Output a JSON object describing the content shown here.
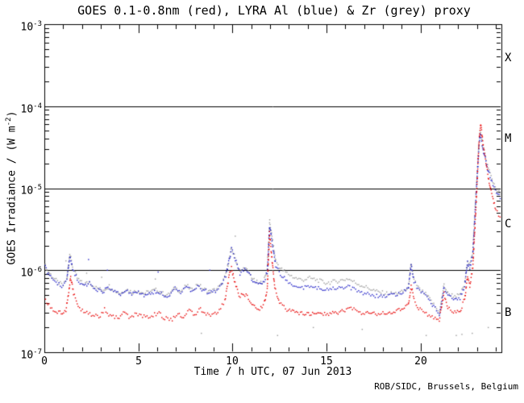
{
  "credit": "ROB/SIDC, Brussels, Belgium",
  "chart_data": {
    "type": "scatter",
    "title": "GOES 0.1-0.8nm (red), LYRA Al (blue) & Zr (grey) proxy",
    "xlabel": "Time / h UTC, 07 Jun 2013",
    "ylabel": "GOES Irradiance / (W m-2)",
    "ylabel_parts": {
      "pre": "GOES Irradiance / (W m",
      "exp": "-2",
      "post": ")"
    },
    "xlim": [
      0,
      24.3
    ],
    "ylim": [
      1e-07,
      0.001
    ],
    "yscale": "log",
    "grid": false,
    "x_major_ticks": [
      0,
      5,
      10,
      15,
      20
    ],
    "x_tick_labels": [
      "0",
      "5",
      "10",
      "15",
      "20"
    ],
    "x_minor_step": 1,
    "y_ticks": [
      {
        "base": "10",
        "exp": "-3",
        "value": 0.001
      },
      {
        "base": "10",
        "exp": "-4",
        "value": 0.0001
      },
      {
        "base": "10",
        "exp": "-5",
        "value": 1e-05
      },
      {
        "base": "10",
        "exp": "-6",
        "value": 1e-06
      },
      {
        "base": "10",
        "exp": "-7",
        "value": 1e-07
      }
    ],
    "hlines": [
      0.0001,
      1e-05,
      1e-06
    ],
    "flare_classes": [
      {
        "label": "X",
        "range": [
          0.0001,
          0.001
        ]
      },
      {
        "label": "M",
        "range": [
          1e-05,
          0.0001
        ]
      },
      {
        "label": "C",
        "range": [
          1e-06,
          1e-05
        ]
      },
      {
        "label": "B",
        "range": [
          1e-07,
          1e-06
        ]
      }
    ],
    "series": [
      {
        "name": "LYRA Zr proxy",
        "color": "#9b9b9b",
        "points": [
          [
            0,
            1.2e-06
          ],
          [
            0.15,
            1e-06
          ],
          [
            0.4,
            8.5e-07
          ],
          [
            0.7,
            7.2e-07
          ],
          [
            1.0,
            6.5e-07
          ],
          [
            1.2,
            7.8e-07
          ],
          [
            1.35,
            1.62e-06
          ],
          [
            1.5,
            1.1e-06
          ],
          [
            1.75,
            8e-07
          ],
          [
            2.05,
            6.8e-07
          ],
          [
            2.4,
            7.1e-07
          ],
          [
            2.75,
            6.1e-07
          ],
          [
            3.1,
            5.7e-07
          ],
          [
            3.45,
            6.4e-07
          ],
          [
            3.75,
            5.6e-07
          ],
          [
            4.05,
            5.2e-07
          ],
          [
            4.35,
            5.9e-07
          ],
          [
            4.65,
            5.4e-07
          ],
          [
            5.0,
            5.6e-07
          ],
          [
            5.3,
            5.2e-07
          ],
          [
            5.65,
            5.5e-07
          ],
          [
            6.0,
            5.8e-07
          ],
          [
            6.3,
            5.2e-07
          ],
          [
            6.6,
            5e-07
          ],
          [
            6.95,
            6.1e-07
          ],
          [
            7.25,
            5.5e-07
          ],
          [
            7.55,
            6.5e-07
          ],
          [
            7.85,
            5.7e-07
          ],
          [
            8.15,
            6.8e-07
          ],
          [
            8.45,
            5.9e-07
          ],
          [
            8.8,
            5.5e-07
          ],
          [
            9.1,
            5.8e-07
          ],
          [
            9.4,
            6.6e-07
          ],
          [
            9.65,
            8.8e-07
          ],
          [
            9.95,
            1.85e-06
          ],
          [
            10.15,
            1.4e-06
          ],
          [
            10.4,
            9.5e-07
          ],
          [
            10.65,
            1.08e-06
          ],
          [
            10.9,
            9.1e-07
          ],
          [
            11.15,
            7.5e-07
          ],
          [
            11.45,
            6.8e-07
          ],
          [
            11.7,
            7.8e-07
          ],
          [
            11.85,
            1e-06
          ],
          [
            11.98,
            3.9e-06
          ],
          [
            12.12,
            2.4e-06
          ],
          [
            12.3,
            1.3e-06
          ],
          [
            12.55,
            1.05e-06
          ],
          [
            12.9,
            9.2e-07
          ],
          [
            13.3,
            8.1e-07
          ],
          [
            13.7,
            7.6e-07
          ],
          [
            14.1,
            8e-07
          ],
          [
            14.5,
            7.6e-07
          ],
          [
            14.95,
            7e-07
          ],
          [
            15.35,
            7.2e-07
          ],
          [
            15.75,
            7.5e-07
          ],
          [
            16.15,
            7.9e-07
          ],
          [
            16.55,
            7e-07
          ],
          [
            16.95,
            6.4e-07
          ],
          [
            17.35,
            5.9e-07
          ],
          [
            17.75,
            5.4e-07
          ],
          [
            18.2,
            5.2e-07
          ],
          [
            18.6,
            5.2e-07
          ],
          [
            19.0,
            5.4e-07
          ],
          [
            19.35,
            6.1e-07
          ],
          [
            19.5,
            1.2e-06
          ],
          [
            19.65,
            7.5e-07
          ],
          [
            19.95,
            5.8e-07
          ],
          [
            20.35,
            4.9e-07
          ],
          [
            20.7,
            3.8e-07
          ],
          [
            21.0,
            3e-07
          ],
          [
            21.25,
            6.6e-07
          ],
          [
            21.45,
            5.2e-07
          ],
          [
            21.75,
            4.9e-07
          ],
          [
            22.1,
            4.9e-07
          ],
          [
            22.35,
            6.9e-07
          ],
          [
            22.5,
            1.3e-06
          ],
          [
            22.62,
            1.1e-06
          ],
          [
            22.78,
            1.7e-06
          ],
          [
            22.95,
            9e-06
          ],
          [
            23.1,
            3.3e-05
          ],
          [
            23.17,
            5e-05
          ],
          [
            23.35,
            3e-05
          ],
          [
            23.6,
            1.75e-05
          ],
          [
            23.85,
            1.2e-05
          ],
          [
            24.1,
            9.2e-06
          ],
          [
            24.3,
            8.2e-06
          ]
        ],
        "outliers": [
          [
            1.15,
            1.3e-06
          ],
          [
            2.25,
            9.2e-07
          ],
          [
            3.05,
            8.2e-07
          ],
          [
            5.9,
            7.8e-07
          ],
          [
            8.35,
            1.7e-07
          ],
          [
            10.15,
            2.6e-06
          ],
          [
            12.4,
            1.6e-07
          ],
          [
            14.3,
            2e-07
          ],
          [
            16.9,
            1.9e-07
          ],
          [
            20.3,
            1.6e-07
          ],
          [
            21.9,
            1.6e-07
          ],
          [
            22.2,
            1.65e-07
          ],
          [
            22.75,
            1.7e-07
          ],
          [
            23.6,
            2e-07
          ]
        ]
      },
      {
        "name": "LYRA Al proxy",
        "color": "#2222c8",
        "points": [
          [
            0,
            1.15e-06
          ],
          [
            0.15,
            9.5e-07
          ],
          [
            0.4,
            8.2e-07
          ],
          [
            0.7,
            7e-07
          ],
          [
            1.0,
            6.3e-07
          ],
          [
            1.2,
            7.5e-07
          ],
          [
            1.35,
            1.5e-06
          ],
          [
            1.5,
            1.05e-06
          ],
          [
            1.75,
            7.8e-07
          ],
          [
            2.05,
            6.6e-07
          ],
          [
            2.4,
            6.9e-07
          ],
          [
            2.75,
            5.9e-07
          ],
          [
            3.1,
            5.5e-07
          ],
          [
            3.45,
            6.2e-07
          ],
          [
            3.75,
            5.4e-07
          ],
          [
            4.05,
            5e-07
          ],
          [
            4.35,
            5.7e-07
          ],
          [
            4.65,
            5.2e-07
          ],
          [
            5.0,
            5.4e-07
          ],
          [
            5.3,
            5e-07
          ],
          [
            5.65,
            5.3e-07
          ],
          [
            6.0,
            5.6e-07
          ],
          [
            6.3,
            5e-07
          ],
          [
            6.6,
            4.8e-07
          ],
          [
            6.95,
            5.9e-07
          ],
          [
            7.25,
            5.3e-07
          ],
          [
            7.55,
            6.3e-07
          ],
          [
            7.85,
            5.5e-07
          ],
          [
            8.15,
            6.6e-07
          ],
          [
            8.45,
            5.7e-07
          ],
          [
            8.8,
            5.3e-07
          ],
          [
            9.1,
            5.6e-07
          ],
          [
            9.4,
            6.4e-07
          ],
          [
            9.65,
            8.5e-07
          ],
          [
            9.95,
            1.8e-06
          ],
          [
            10.15,
            1.35e-06
          ],
          [
            10.4,
            9.2e-07
          ],
          [
            10.65,
            1.05e-06
          ],
          [
            10.9,
            8.8e-07
          ],
          [
            11.15,
            7.2e-07
          ],
          [
            11.45,
            6.6e-07
          ],
          [
            11.7,
            7.5e-07
          ],
          [
            11.85,
            9.5e-07
          ],
          [
            11.98,
            3.4e-06
          ],
          [
            12.12,
            2.1e-06
          ],
          [
            12.3,
            1.15e-06
          ],
          [
            12.55,
            8.8e-07
          ],
          [
            12.9,
            7.4e-07
          ],
          [
            13.3,
            6.5e-07
          ],
          [
            13.7,
            6.1e-07
          ],
          [
            14.1,
            6.4e-07
          ],
          [
            14.5,
            6.1e-07
          ],
          [
            14.95,
            5.7e-07
          ],
          [
            15.35,
            5.9e-07
          ],
          [
            15.75,
            6.1e-07
          ],
          [
            16.15,
            6.4e-07
          ],
          [
            16.55,
            5.7e-07
          ],
          [
            16.95,
            5.3e-07
          ],
          [
            17.35,
            5e-07
          ],
          [
            17.75,
            4.8e-07
          ],
          [
            18.2,
            4.9e-07
          ],
          [
            18.6,
            5e-07
          ],
          [
            19.0,
            5.2e-07
          ],
          [
            19.35,
            5.9e-07
          ],
          [
            19.5,
            1.15e-06
          ],
          [
            19.65,
            7.2e-07
          ],
          [
            19.95,
            5.6e-07
          ],
          [
            20.35,
            4.7e-07
          ],
          [
            20.7,
            3.6e-07
          ],
          [
            21.0,
            2.8e-07
          ],
          [
            21.25,
            6.2e-07
          ],
          [
            21.45,
            4.9e-07
          ],
          [
            21.75,
            4.6e-07
          ],
          [
            22.1,
            4.6e-07
          ],
          [
            22.35,
            6.5e-07
          ],
          [
            22.5,
            1.25e-06
          ],
          [
            22.62,
            1.05e-06
          ],
          [
            22.78,
            1.6e-06
          ],
          [
            22.95,
            8e-06
          ],
          [
            23.1,
            3e-05
          ],
          [
            23.17,
            4.6e-05
          ],
          [
            23.35,
            2.8e-05
          ],
          [
            23.6,
            1.6e-05
          ],
          [
            23.85,
            1.1e-05
          ],
          [
            24.1,
            8.5e-06
          ],
          [
            24.3,
            7.5e-06
          ]
        ],
        "outliers": [
          [
            2.35,
            1.35e-06
          ],
          [
            3.35,
            1e-06
          ],
          [
            6.05,
            9.5e-07
          ],
          [
            8.8,
            1e-06
          ]
        ]
      },
      {
        "name": "GOES 0.1-0.8nm",
        "color": "#e80000",
        "points": [
          [
            0,
            4.6e-07
          ],
          [
            0.25,
            3.7e-07
          ],
          [
            0.55,
            3.2e-07
          ],
          [
            0.9,
            3e-07
          ],
          [
            1.15,
            3.3e-07
          ],
          [
            1.3,
            5.5e-07
          ],
          [
            1.4,
            8.5e-07
          ],
          [
            1.55,
            5.2e-07
          ],
          [
            1.8,
            3.7e-07
          ],
          [
            2.1,
            3.1e-07
          ],
          [
            2.5,
            2.9e-07
          ],
          [
            2.9,
            2.7e-07
          ],
          [
            3.2,
            3.3e-07
          ],
          [
            3.5,
            2.8e-07
          ],
          [
            3.9,
            2.6e-07
          ],
          [
            4.2,
            3.1e-07
          ],
          [
            4.5,
            2.7e-07
          ],
          [
            4.9,
            2.9e-07
          ],
          [
            5.3,
            2.7e-07
          ],
          [
            5.7,
            2.8e-07
          ],
          [
            6.1,
            3e-07
          ],
          [
            6.4,
            2.6e-07
          ],
          [
            6.8,
            2.5e-07
          ],
          [
            7.1,
            3e-07
          ],
          [
            7.4,
            2.7e-07
          ],
          [
            7.7,
            3.2e-07
          ],
          [
            8.0,
            2.8e-07
          ],
          [
            8.3,
            3.4e-07
          ],
          [
            8.6,
            2.9e-07
          ],
          [
            9.0,
            2.9e-07
          ],
          [
            9.3,
            3.2e-07
          ],
          [
            9.6,
            4.2e-07
          ],
          [
            9.85,
            9e-07
          ],
          [
            9.95,
            1.05e-06
          ],
          [
            10.1,
            7.5e-07
          ],
          [
            10.35,
            4.8e-07
          ],
          [
            10.6,
            5.2e-07
          ],
          [
            10.85,
            4.6e-07
          ],
          [
            11.1,
            3.7e-07
          ],
          [
            11.45,
            3.4e-07
          ],
          [
            11.7,
            4e-07
          ],
          [
            11.85,
            6e-07
          ],
          [
            11.97,
            2.8e-06
          ],
          [
            12.1,
            1.4e-06
          ],
          [
            12.25,
            6e-07
          ],
          [
            12.5,
            3.9e-07
          ],
          [
            12.9,
            3.3e-07
          ],
          [
            13.4,
            3e-07
          ],
          [
            13.9,
            2.9e-07
          ],
          [
            14.4,
            3e-07
          ],
          [
            14.9,
            2.9e-07
          ],
          [
            15.4,
            3e-07
          ],
          [
            15.9,
            3.2e-07
          ],
          [
            16.3,
            3.5e-07
          ],
          [
            16.7,
            3.1e-07
          ],
          [
            17.1,
            3e-07
          ],
          [
            17.6,
            2.9e-07
          ],
          [
            18.0,
            3e-07
          ],
          [
            18.5,
            3.1e-07
          ],
          [
            19.0,
            3.3e-07
          ],
          [
            19.35,
            3.8e-07
          ],
          [
            19.5,
            6.5e-07
          ],
          [
            19.65,
            4.5e-07
          ],
          [
            19.9,
            3.4e-07
          ],
          [
            20.3,
            2.9e-07
          ],
          [
            20.7,
            2.6e-07
          ],
          [
            21.0,
            2.5e-07
          ],
          [
            21.25,
            5.2e-07
          ],
          [
            21.45,
            3.5e-07
          ],
          [
            21.75,
            3.1e-07
          ],
          [
            22.1,
            3.1e-07
          ],
          [
            22.35,
            4.5e-07
          ],
          [
            22.5,
            8.5e-07
          ],
          [
            22.62,
            6.5e-07
          ],
          [
            22.78,
            1.1e-06
          ],
          [
            22.95,
            6e-06
          ],
          [
            23.1,
            3.5e-05
          ],
          [
            23.2,
            6.2e-05
          ],
          [
            23.35,
            3e-05
          ],
          [
            23.55,
            1.6e-05
          ],
          [
            23.75,
            9e-06
          ],
          [
            24.0,
            5.5e-06
          ],
          [
            24.3,
            4.2e-06
          ]
        ],
        "outliers": []
      }
    ]
  }
}
